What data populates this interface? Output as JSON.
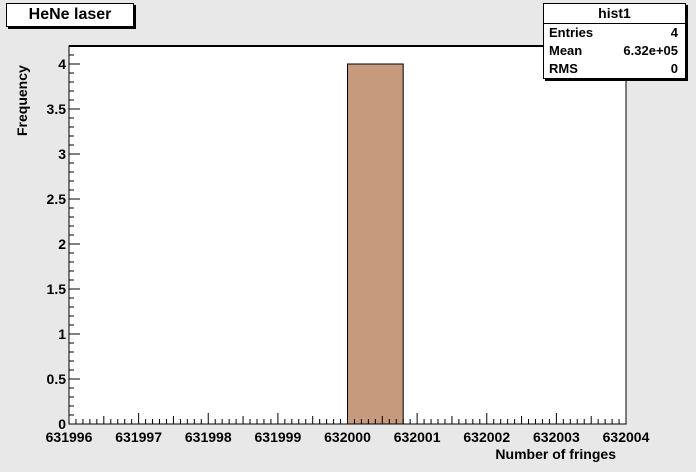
{
  "chart_data": {
    "type": "bar",
    "title": "HeNe laser",
    "xlabel": "Number of fringes",
    "ylabel": "Frequency",
    "xlim": [
      631996,
      632004
    ],
    "ylim": [
      0,
      4.2
    ],
    "x_ticks": [
      "631996",
      "631997",
      "631998",
      "631999",
      "632000",
      "632001",
      "632002",
      "632003",
      "632004"
    ],
    "y_ticks": [
      "0",
      "0.5",
      "1",
      "1.5",
      "2",
      "2.5",
      "3",
      "3.5",
      "4"
    ],
    "bins": [
      {
        "x_low": 632000,
        "x_high": 632000.8,
        "value": 4
      }
    ],
    "bar_color": "#c69a7c",
    "grid": false,
    "legend": "none"
  },
  "stats": {
    "name": "hist1",
    "rows": [
      {
        "label": "Entries",
        "value": "4"
      },
      {
        "label": "Mean",
        "value": "6.32e+05"
      },
      {
        "label": "RMS",
        "value": "0"
      }
    ]
  }
}
